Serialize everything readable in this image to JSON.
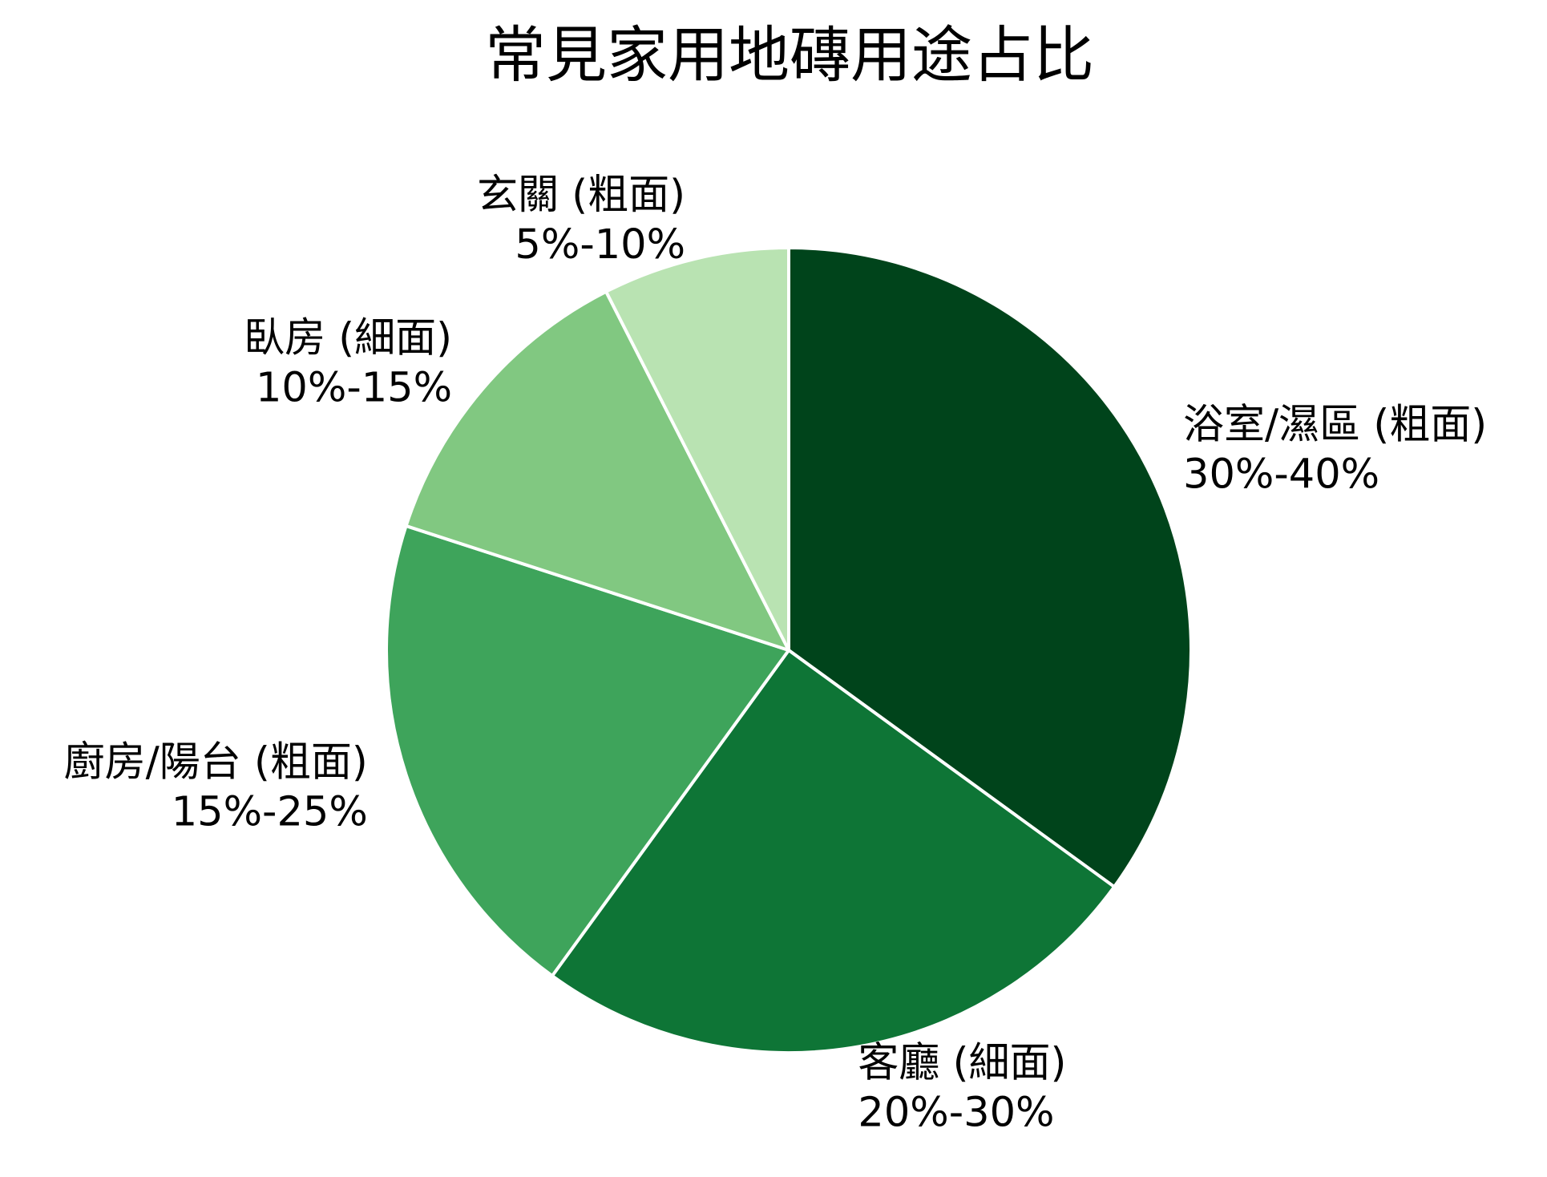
{
  "chart_data": {
    "type": "pie",
    "title": "常見家用地磚用途占比",
    "start_angle_deg": 90,
    "direction": "clockwise",
    "slices": [
      {
        "name": "浴室/濕區 (粗面)",
        "range_label": "30%-40%",
        "value": 35,
        "color": "#00441b"
      },
      {
        "name": "客廳 (細面)",
        "range_label": "20%-30%",
        "value": 25,
        "color": "#0e7536"
      },
      {
        "name": "廚房/陽台 (粗面)",
        "range_label": "15%-25%",
        "value": 20,
        "color": "#3ea45b"
      },
      {
        "name": "臥房 (細面)",
        "range_label": "10%-15%",
        "value": 12.5,
        "color": "#81c881"
      },
      {
        "name": "玄關 (粗面)",
        "range_label": "5%-10%",
        "value": 7.5,
        "color": "#b9e3b2"
      }
    ]
  }
}
